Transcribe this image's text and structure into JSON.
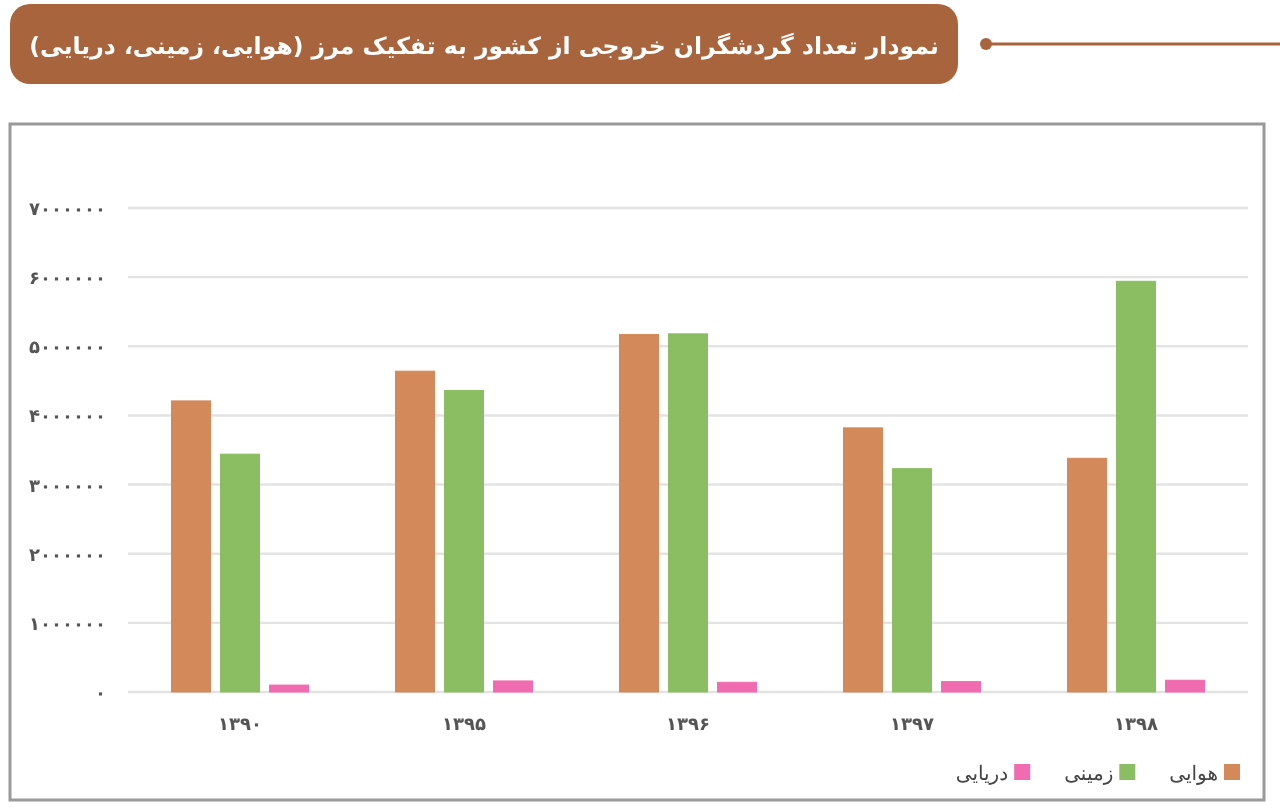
{
  "chart_data": {
    "type": "bar",
    "title": "نمودار تعداد گردشگران خروجی از کشور به تفکیک مرز (هوایی، زمینی، دریایی)",
    "categories": [
      "۱۳۹۰",
      "۱۳۹۵",
      "۱۳۹۶",
      "۱۳۹۷",
      "۱۳۹۸"
    ],
    "series": [
      {
        "name": "هوایی",
        "color": "#d4895a",
        "values": [
          4210000,
          4640000,
          5170000,
          3820000,
          3380000
        ]
      },
      {
        "name": "زمینی",
        "color": "#8bbd62",
        "values": [
          3440000,
          4360000,
          5180000,
          3230000,
          5940000
        ]
      },
      {
        "name": "دریایی",
        "color": "#f06bb0",
        "values": [
          100000,
          160000,
          140000,
          150000,
          170000
        ]
      }
    ],
    "ylim": [
      0,
      7000000
    ],
    "yticks": [
      {
        "value": 0,
        "label": "۰"
      },
      {
        "value": 1000000,
        "label": "۱۰۰۰۰۰۰"
      },
      {
        "value": 2000000,
        "label": "۲۰۰۰۰۰۰"
      },
      {
        "value": 3000000,
        "label": "۳۰۰۰۰۰۰"
      },
      {
        "value": 4000000,
        "label": "۴۰۰۰۰۰۰"
      },
      {
        "value": 5000000,
        "label": "۵۰۰۰۰۰۰"
      },
      {
        "value": 6000000,
        "label": "۶۰۰۰۰۰۰"
      },
      {
        "value": 7000000,
        "label": "۷۰۰۰۰۰۰"
      }
    ],
    "grid": "y",
    "legend": "bottom right"
  }
}
